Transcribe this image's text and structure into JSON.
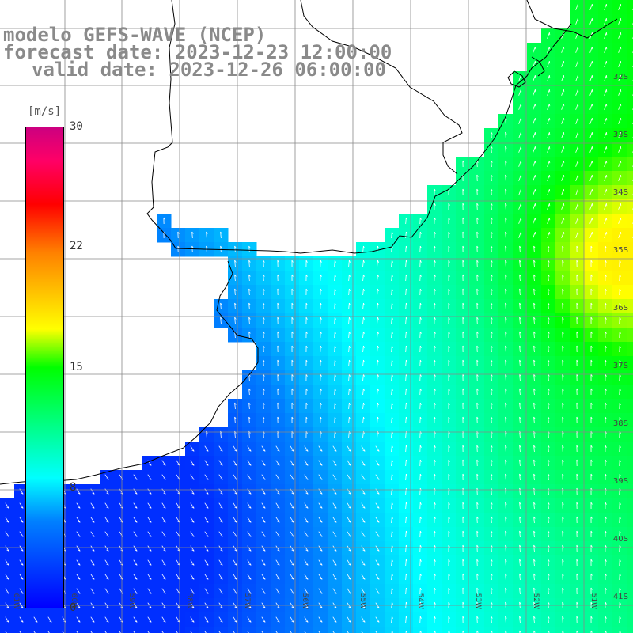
{
  "header": {
    "model_line": "modelo GEFS-WAVE (NCEP)",
    "forecast_line": "forecast date: 2023-12-23 12:00:00",
    "valid_line": "valid date: 2023-12-26 06:00:00"
  },
  "legend": {
    "unit": "[m/s]",
    "ticks": [
      "30",
      "22",
      "15",
      "8",
      "0"
    ],
    "colors": [
      "#0000ff",
      "#0080ff",
      "#00ffff",
      "#00ff00",
      "#ffff00",
      "#ff8000",
      "#ff0000",
      "#cc0080"
    ]
  },
  "map": {
    "lat_labels": [
      "32S",
      "33S",
      "34S",
      "35S",
      "36S",
      "37S",
      "38S",
      "39S",
      "40S",
      "41S"
    ],
    "lon_labels": [
      "61W",
      "60W",
      "59W",
      "58W",
      "57W",
      "56W",
      "55W",
      "54W",
      "53W",
      "52W",
      "51W"
    ],
    "land_color": "#ffffff",
    "grid_color": "#888888",
    "coast_color": "#000000",
    "arrow_color": "#ffffff"
  }
}
